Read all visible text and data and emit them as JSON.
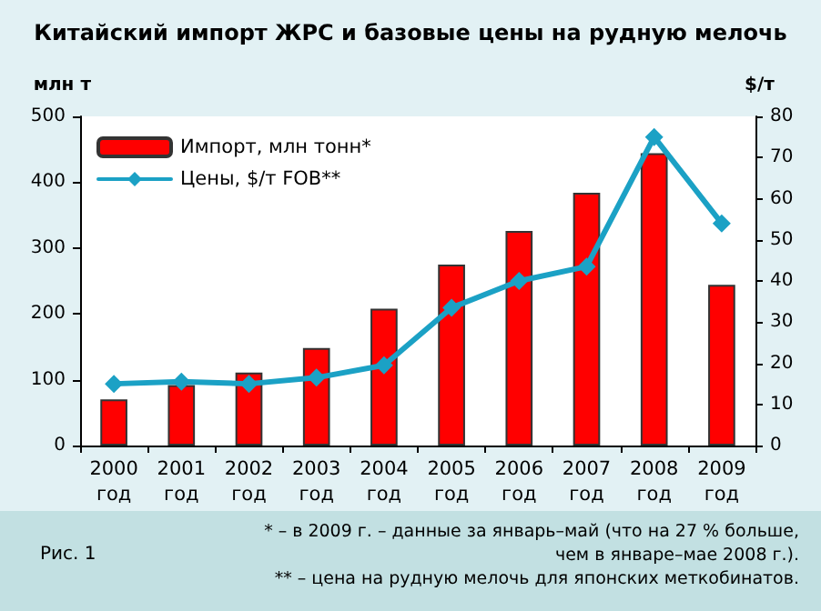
{
  "chart_data": {
    "type": "bar",
    "title": "Китайский импорт ЖРС и базовые цены на рудную мелочь",
    "ylabel": "млн т",
    "y2label": "$/т",
    "categories": [
      "2000\nгод",
      "2001\nгод",
      "2002\nгод",
      "2003\nгод",
      "2004\nгод",
      "2005\nгод",
      "2006\nгод",
      "2007\nгод",
      "2008\nгод",
      "2009\nгод"
    ],
    "series": [
      {
        "name": "Импорт, млн тонн*",
        "color": "#ff0000",
        "values": [
          70,
          92,
          111,
          148,
          208,
          275,
          326,
          384,
          444,
          244
        ]
      },
      {
        "name": "Цены, $/т FOB**",
        "type": "line",
        "axis": "y2",
        "color": "#1ba1c5",
        "marker": "diamond",
        "values": [
          15,
          15.5,
          15,
          16.5,
          19.5,
          33.5,
          40,
          43.5,
          75,
          54
        ]
      }
    ],
    "ylim": [
      0,
      500
    ],
    "yticks": [
      0,
      100,
      200,
      300,
      400,
      500
    ],
    "y2lim": [
      0,
      80
    ],
    "y2ticks": [
      0,
      10,
      20,
      30,
      40,
      50,
      60,
      70,
      80
    ],
    "grid": false,
    "legend": "top left",
    "annotations": [
      "Рис. 1",
      "* – в 2009 г. – данные за январь–май (что на 27 % больше,\nчем в январе–мае 2008 г.).",
      "** – цена на рудную мелочь для японских меткобинатов."
    ]
  }
}
